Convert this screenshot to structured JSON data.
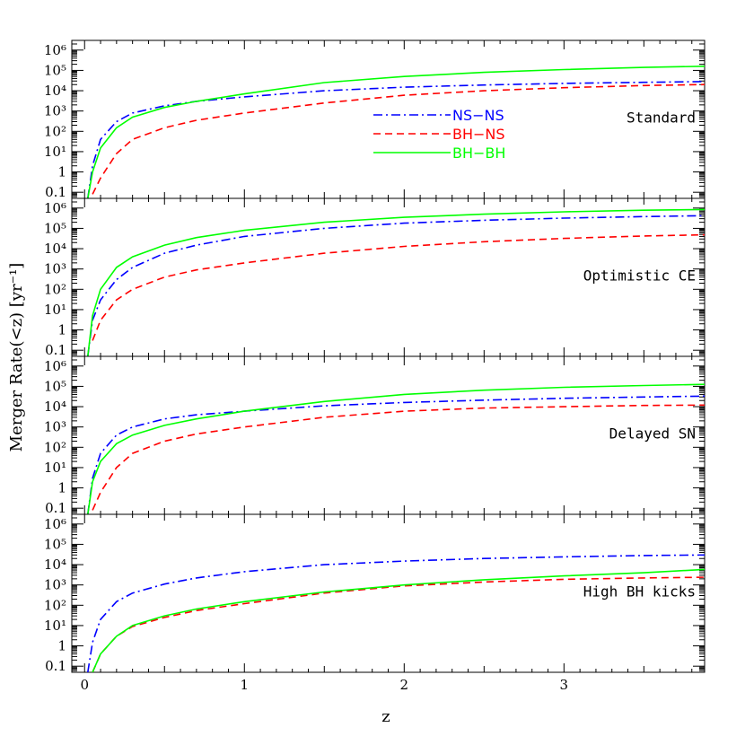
{
  "chart_data": {
    "type": "line",
    "xlabel": "z",
    "ylabel": "Merger Rate(<z) [yr⁻¹]",
    "xlim": [
      -0.08,
      3.88
    ],
    "ylim": [
      0.05,
      3000000
    ],
    "yscale": "log",
    "x_ticks": [
      0,
      1,
      2,
      3
    ],
    "y_ticks": [
      {
        "value": 0.1,
        "label": "0.1"
      },
      {
        "value": 1,
        "label": "1"
      },
      {
        "value": 10,
        "label": "10¹"
      },
      {
        "value": 100,
        "label": "10²"
      },
      {
        "value": 1000,
        "label": "10³"
      },
      {
        "value": 10000,
        "label": "10⁴"
      },
      {
        "value": 100000,
        "label": "10⁵"
      },
      {
        "value": 1000000,
        "label": "10⁶"
      }
    ],
    "legend": {
      "location": "inside upper-center of top panel",
      "entries": [
        {
          "name": "NS−NS",
          "color": "#0000ff",
          "style": "dash-dot"
        },
        {
          "name": "BH−NS",
          "color": "#ff0000",
          "style": "dashed"
        },
        {
          "name": "BH−BH",
          "color": "#00ff00",
          "style": "solid"
        }
      ]
    },
    "x": [
      0.02,
      0.05,
      0.1,
      0.2,
      0.3,
      0.5,
      0.7,
      1.0,
      1.5,
      2.0,
      2.5,
      3.0,
      3.5,
      3.88
    ],
    "panels": [
      {
        "label": "Standard",
        "series": [
          {
            "name": "NS−NS",
            "values": [
              0.05,
              2,
              40,
              300,
              800,
              1800,
              3000,
              5000,
              10000,
              15000,
              19000,
              23000,
              26000,
              28000
            ]
          },
          {
            "name": "BH−NS",
            "values": [
              null,
              0.08,
              0.5,
              8,
              40,
              150,
              350,
              800,
              2500,
              6000,
              10000,
              14000,
              18000,
              20000
            ]
          },
          {
            "name": "BH−BH",
            "values": [
              0.05,
              1,
              15,
              150,
              500,
              1500,
              3000,
              7000,
              25000,
              50000,
              80000,
              110000,
              140000,
              160000
            ]
          }
        ]
      },
      {
        "label": "Optimistic CE",
        "series": [
          {
            "name": "NS−NS",
            "values": [
              0.05,
              3,
              30,
              300,
              1200,
              6000,
              15000,
              40000,
              100000,
              180000,
              250000,
              320000,
              380000,
              420000
            ]
          },
          {
            "name": "BH−NS",
            "values": [
              null,
              0.3,
              3,
              30,
              100,
              400,
              900,
              2000,
              6000,
              13000,
              22000,
              32000,
              42000,
              48000
            ]
          },
          {
            "name": "BH−BH",
            "values": [
              0.05,
              5,
              100,
              1200,
              4000,
              15000,
              35000,
              80000,
              200000,
              350000,
              500000,
              650000,
              780000,
              850000
            ]
          }
        ]
      },
      {
        "label": "Delayed SN",
        "series": [
          {
            "name": "NS−NS",
            "values": [
              0.05,
              3,
              50,
              400,
              1000,
              2500,
              4000,
              6000,
              11000,
              16000,
              21000,
              26000,
              30000,
              33000
            ]
          },
          {
            "name": "BH−NS",
            "values": [
              null,
              0.08,
              0.6,
              10,
              50,
              200,
              450,
              1000,
              3000,
              6000,
              8500,
              10000,
              11500,
              12000
            ]
          },
          {
            "name": "BH−BH",
            "values": [
              0.05,
              2,
              20,
              150,
              400,
              1200,
              2500,
              6000,
              18000,
              40000,
              65000,
              90000,
              110000,
              125000
            ]
          }
        ]
      },
      {
        "label": "High BH kicks",
        "series": [
          {
            "name": "NS−NS",
            "values": [
              0.05,
              1.5,
              20,
              150,
              400,
              1100,
              2200,
              4500,
              10000,
              15000,
              20000,
              24000,
              28000,
              30000
            ]
          },
          {
            "name": "BH−NS",
            "values": [
              null,
              0.05,
              0.4,
              3,
              9,
              25,
              55,
              120,
              400,
              900,
              1400,
              1900,
              2200,
              2400
            ]
          },
          {
            "name": "BH−BH",
            "values": [
              null,
              0.05,
              0.4,
              3,
              10,
              30,
              65,
              150,
              450,
              1000,
              1800,
              2800,
              4000,
              5800
            ]
          }
        ]
      }
    ]
  }
}
